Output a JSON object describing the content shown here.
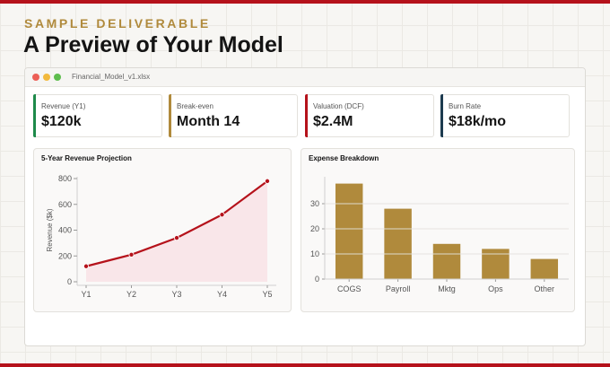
{
  "header": {
    "eyebrow": "SAMPLE DELIVERABLE",
    "title": "A Preview of Your Model"
  },
  "window": {
    "filename": "Financial_Model_v1.xlsx"
  },
  "kpis": [
    {
      "label": "Revenue (Y1)",
      "value": "$120k",
      "accent": "#1e8a4a"
    },
    {
      "label": "Break-even",
      "value": "Month 14",
      "accent": "#b08a3c"
    },
    {
      "label": "Valuation (DCF)",
      "value": "$2.4M",
      "accent": "#b5121b"
    },
    {
      "label": "Burn Rate",
      "value": "$18k/mo",
      "accent": "#1d3b4f"
    }
  ],
  "colors": {
    "brand_red": "#b5121b",
    "gold": "#b08a3c",
    "area_fill": "#f8e3e6"
  },
  "chart_data": [
    {
      "type": "line",
      "title": "5-Year Revenue Projection",
      "xlabel": "",
      "ylabel": "Revenue ($k)",
      "categories": [
        "Y1",
        "Y2",
        "Y3",
        "Y4",
        "Y5"
      ],
      "values": [
        120,
        210,
        340,
        520,
        780
      ],
      "ylim": [
        0,
        800
      ],
      "yticks": [
        0,
        200,
        400,
        600,
        800
      ],
      "area_fill": true,
      "grid": false
    },
    {
      "type": "bar",
      "title": "Expense Breakdown",
      "xlabel": "",
      "ylabel": "",
      "categories": [
        "COGS",
        "Payroll",
        "Mktg",
        "Ops",
        "Other"
      ],
      "values": [
        38,
        28,
        14,
        12,
        8
      ],
      "ylim": [
        0,
        40
      ],
      "yticks": [
        0,
        10,
        20,
        30
      ],
      "grid": true
    }
  ]
}
